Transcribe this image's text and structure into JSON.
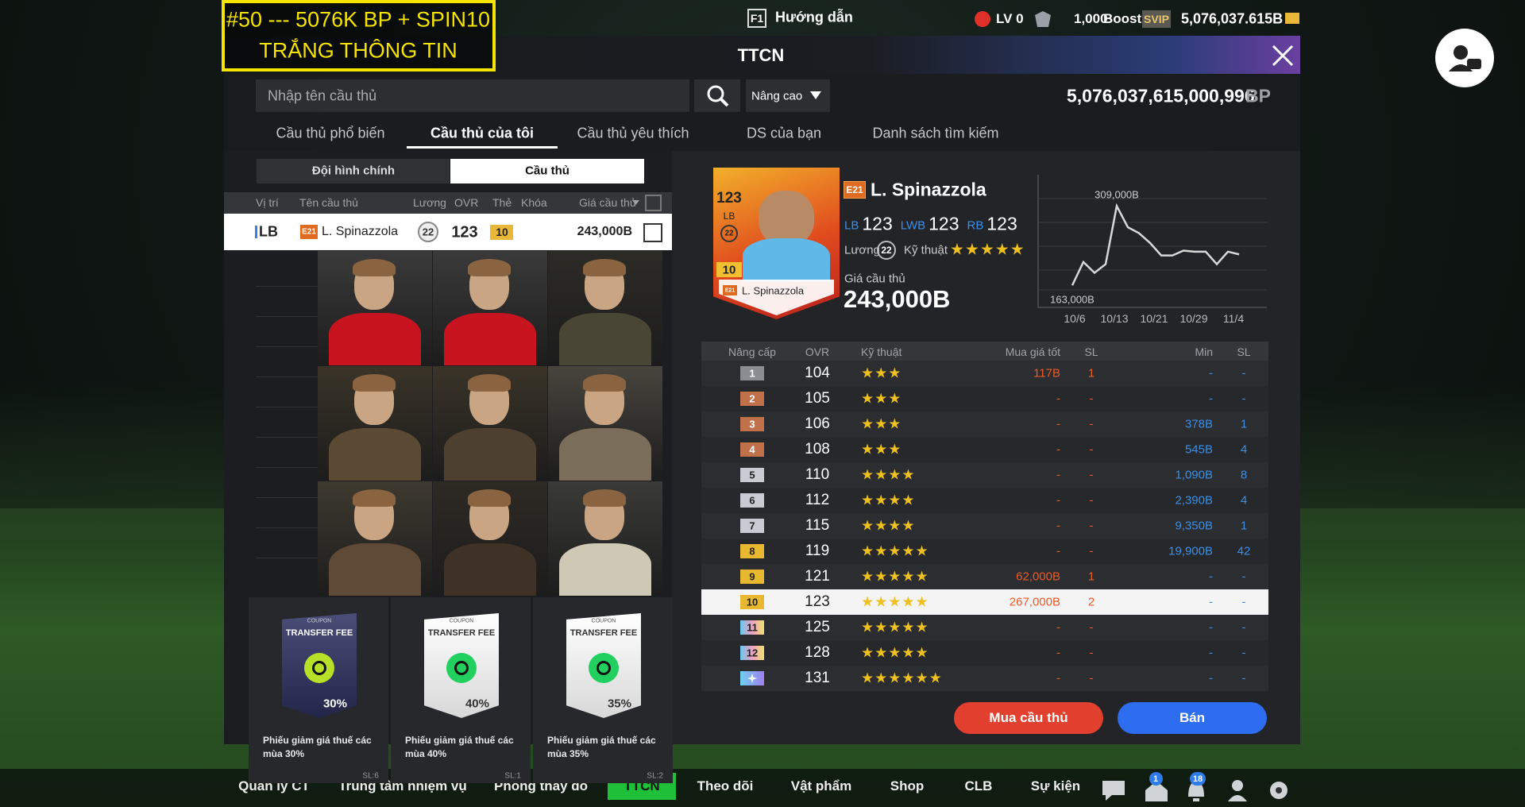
{
  "banner": {
    "line1": "#50 --- 5076K BP + SPIN10",
    "line2": "TRẮNG THÔNG TIN"
  },
  "topbar": {
    "f1": "F1",
    "guide": "Hướng dẫn",
    "level": "LV 0",
    "points": "1,000",
    "boost": "Boost",
    "svip": "SVIP",
    "balance": "5,076,037.615B"
  },
  "panel": {
    "title": "TTCN"
  },
  "search": {
    "placeholder": "Nhập tên cầu thủ",
    "dropdown": "Nâng cao",
    "bp_total": "5,076,037,615,000,996",
    "bp_unit": "BP"
  },
  "tabs": [
    "Cầu thủ phổ biến",
    "Cầu thủ của tôi",
    "Cầu thủ yêu thích",
    "DS của bạn",
    "Danh sách tìm kiếm"
  ],
  "subtabs": [
    "Đội hình chính",
    "Cầu thủ"
  ],
  "player_table": {
    "headers": [
      "Vị trí",
      "Tên cầu thủ",
      "Lương",
      "OVR",
      "Thẻ",
      "Khóa",
      "Giá cầu thủ"
    ],
    "row": {
      "position": "LB",
      "season": "E21",
      "name": "L. Spinazzola",
      "salary": "22",
      "ovr": "123",
      "card_level": "10",
      "price": "243,000B"
    }
  },
  "coupons": [
    {
      "top": "COUPON",
      "title": "TRANSFER FEE",
      "percent": "30%",
      "description": "Phiếu giảm giá thuế các mùa 30%",
      "count": "SL:6"
    },
    {
      "top": "COUPON",
      "title": "TRANSFER FEE",
      "percent": "40%",
      "description": "Phiếu giảm giá thuế các mùa 40%",
      "count": "SL:1"
    },
    {
      "top": "COUPON",
      "title": "TRANSFER FEE",
      "percent": "35%",
      "description": "Phiếu giảm giá thuế các mùa 35%",
      "count": "SL:2"
    }
  ],
  "detail": {
    "card": {
      "ovr": "123",
      "position": "LB",
      "salary": "22",
      "level": "10",
      "season": "E21",
      "name": "L. Spinazzola"
    },
    "season": "E21",
    "name": "L. Spinazzola",
    "positions": [
      {
        "pos": "LB",
        "ovr": "123"
      },
      {
        "pos": "LWB",
        "ovr": "123"
      },
      {
        "pos": "RB",
        "ovr": "123"
      }
    ],
    "salary_label": "Lương",
    "salary": "22",
    "skill_label": "Kỹ thuật",
    "skill_stars": 5,
    "price_label": "Giá cầu thủ",
    "price": "243,000B"
  },
  "price_chart": {
    "x_labels": [
      "10/6",
      "10/13",
      "10/21",
      "10/29",
      "11/4"
    ],
    "values": [
      163000,
      206000,
      186000,
      202000,
      309000,
      270000,
      259000,
      241000,
      218000,
      218000,
      227000,
      225000,
      225000,
      202000,
      225000,
      220000
    ],
    "ylim": [
      140000,
      330000
    ],
    "annotations": [
      {
        "index": 4,
        "value": 309000,
        "label": "309,000B"
      },
      {
        "index": 0,
        "value": 163000,
        "label": "163,000B"
      }
    ]
  },
  "upgrade_table": {
    "headers": [
      "Nâng cấp",
      "OVR",
      "Kỹ thuật",
      "Mua giá tốt",
      "SL",
      "Min",
      "SL"
    ],
    "rows": [
      {
        "level": "1",
        "ovr": "104",
        "stars": 3,
        "buy": "117B",
        "buy_count": "1",
        "min": "-",
        "min_count": "-"
      },
      {
        "level": "2",
        "ovr": "105",
        "stars": 3,
        "buy": "-",
        "buy_count": "-",
        "min": "-",
        "min_count": "-"
      },
      {
        "level": "3",
        "ovr": "106",
        "stars": 3,
        "buy": "-",
        "buy_count": "-",
        "min": "378B",
        "min_count": "1"
      },
      {
        "level": "4",
        "ovr": "108",
        "stars": 3,
        "buy": "-",
        "buy_count": "-",
        "min": "545B",
        "min_count": "4"
      },
      {
        "level": "5",
        "ovr": "110",
        "stars": 4,
        "buy": "-",
        "buy_count": "-",
        "min": "1,090B",
        "min_count": "8"
      },
      {
        "level": "6",
        "ovr": "112",
        "stars": 4,
        "buy": "-",
        "buy_count": "-",
        "min": "2,390B",
        "min_count": "4"
      },
      {
        "level": "7",
        "ovr": "115",
        "stars": 4,
        "buy": "-",
        "buy_count": "-",
        "min": "9,350B",
        "min_count": "1"
      },
      {
        "level": "8",
        "ovr": "119",
        "stars": 5,
        "buy": "-",
        "buy_count": "-",
        "min": "19,900B",
        "min_count": "42"
      },
      {
        "level": "9",
        "ovr": "121",
        "stars": 5,
        "buy": "62,000B",
        "buy_count": "1",
        "min": "-",
        "min_count": "-"
      },
      {
        "level": "10",
        "ovr": "123",
        "stars": 5,
        "buy": "267,000B",
        "buy_count": "2",
        "min": "-",
        "min_count": "-",
        "highlight": true
      },
      {
        "level": "11",
        "ovr": "125",
        "stars": 5,
        "buy": "-",
        "buy_count": "-",
        "min": "-",
        "min_count": "-"
      },
      {
        "level": "12",
        "ovr": "128",
        "stars": 5,
        "buy": "-",
        "buy_count": "-",
        "min": "-",
        "min_count": "-"
      },
      {
        "level": null,
        "ovr": "131",
        "stars": 6,
        "buy": "-",
        "buy_count": "-",
        "min": "-",
        "min_count": "-"
      }
    ]
  },
  "buttons": {
    "buy": "Mua cầu thủ",
    "sell": "Bán"
  },
  "bottom_nav": {
    "items": [
      "Quản lý CT",
      "Trung tâm nhiệm vụ",
      "Phòng thay đồ",
      "TTCN",
      "Theo dõi",
      "Vật phẩm",
      "Shop",
      "CLB",
      "Sự kiện"
    ],
    "home_badge": "1",
    "bell_badge": "18"
  }
}
